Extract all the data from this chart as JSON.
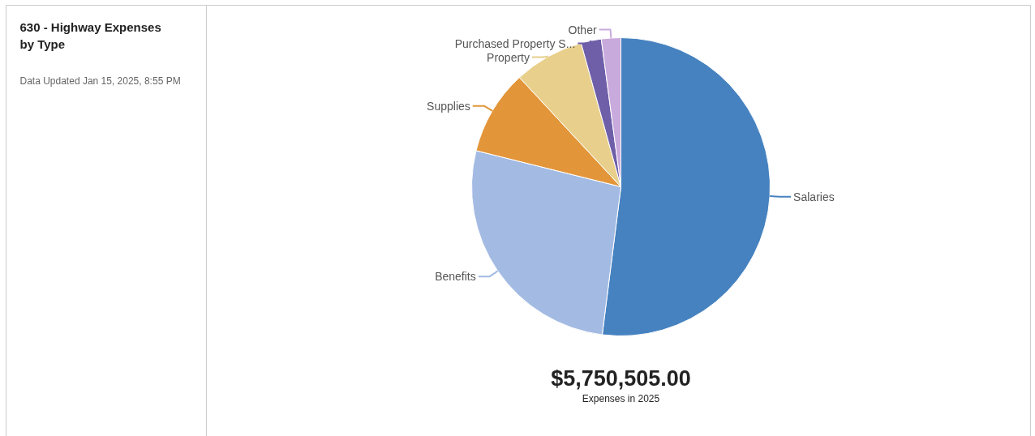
{
  "chart_data": {
    "type": "pie",
    "title": "630 - Highway Expenses by Type",
    "categories": [
      "Salaries",
      "Benefits",
      "Supplies",
      "Property",
      "Purchased Property S...",
      "Other"
    ],
    "values": [
      52.0,
      26.9,
      9.2,
      7.6,
      2.2,
      2.1
    ],
    "colors": [
      "#4682c0",
      "#a3bbe3",
      "#e3953a",
      "#e8d08c",
      "#6f5fa8",
      "#c9aadc"
    ],
    "annotations": [
      "Data Updated Jan 15, 2025, 8:55 PM",
      "$5,750,505.00",
      "Expenses in 2025"
    ]
  }
}
